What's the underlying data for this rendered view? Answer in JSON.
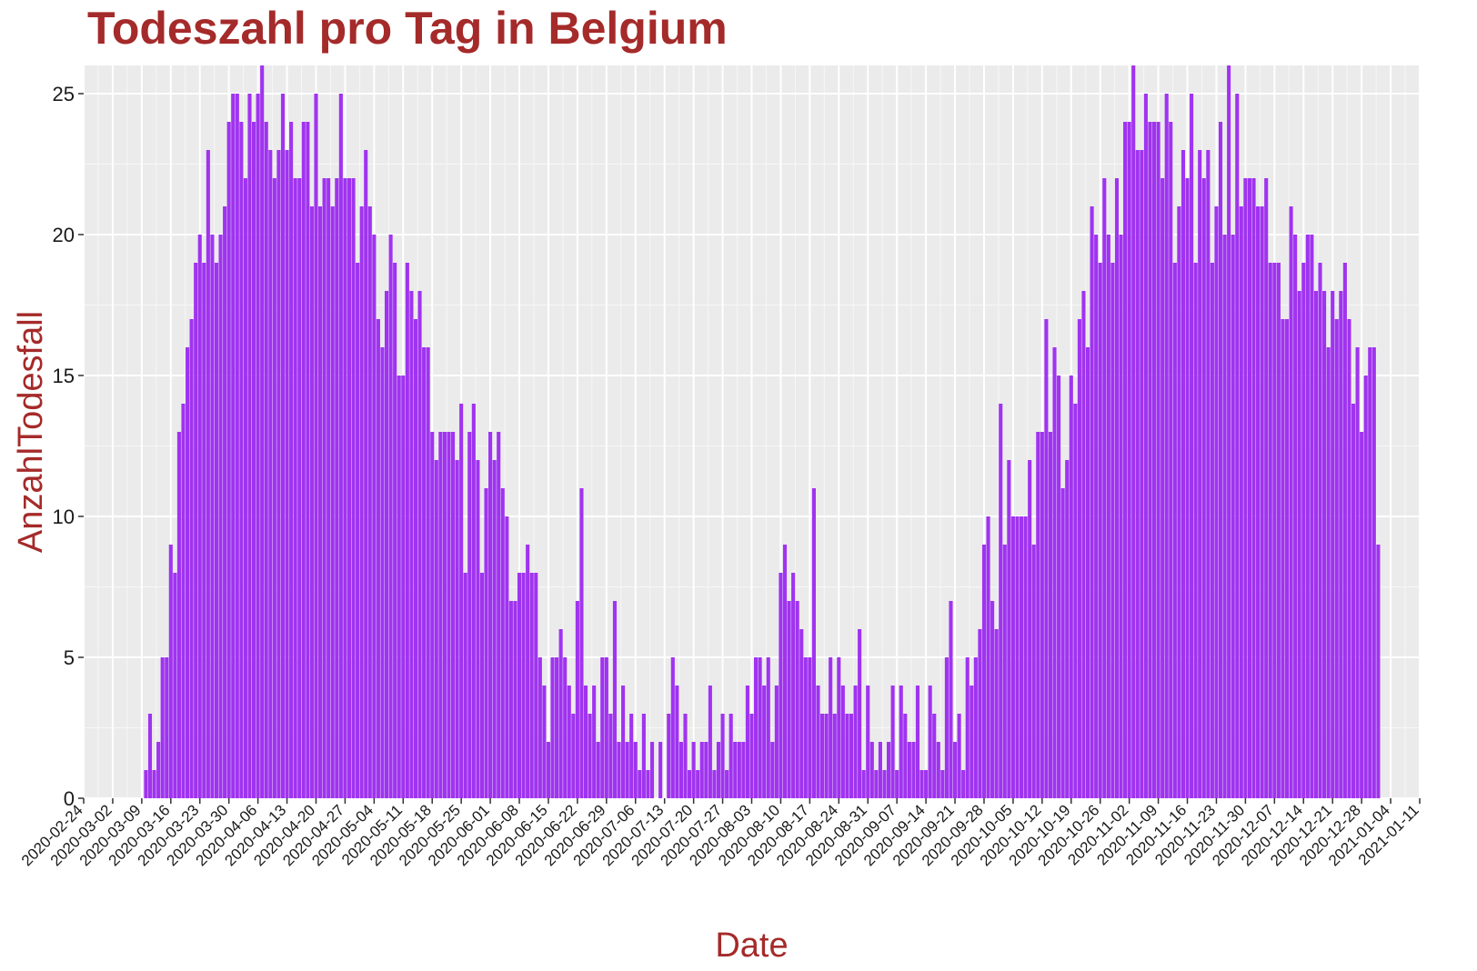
{
  "chart_data": {
    "type": "bar",
    "title": "Todeszahl pro Tag in Belgium",
    "xlabel": "Date",
    "ylabel": "AnzahlTodesfall",
    "ylim": [
      0,
      26
    ],
    "yticks": [
      0,
      5,
      10,
      15,
      20,
      25
    ],
    "xlim": [
      "2020-02-24",
      "2021-01-11"
    ],
    "xticks": [
      "2020-02-24",
      "2020-03-02",
      "2020-03-09",
      "2020-03-16",
      "2020-03-23",
      "2020-03-30",
      "2020-04-06",
      "2020-04-13",
      "2020-04-20",
      "2020-04-27",
      "2020-05-04",
      "2020-05-11",
      "2020-05-18",
      "2020-05-25",
      "2020-06-01",
      "2020-06-08",
      "2020-06-15",
      "2020-06-22",
      "2020-06-29",
      "2020-07-06",
      "2020-07-13",
      "2020-07-20",
      "2020-07-27",
      "2020-08-03",
      "2020-08-10",
      "2020-08-17",
      "2020-08-24",
      "2020-08-31",
      "2020-09-07",
      "2020-09-14",
      "2020-09-21",
      "2020-09-28",
      "2020-10-05",
      "2020-10-12",
      "2020-10-19",
      "2020-10-26",
      "2020-11-02",
      "2020-11-09",
      "2020-11-16",
      "2020-11-23",
      "2020-11-30",
      "2020-12-07",
      "2020-12-14",
      "2020-12-21",
      "2020-12-28",
      "2021-01-04",
      "2021-01-11"
    ],
    "grid": true,
    "bar_color": "#a033f0",
    "start_date": "2020-03-10",
    "values": [
      1,
      3,
      1,
      2,
      5,
      5,
      9,
      8,
      13,
      14,
      16,
      17,
      19,
      20,
      19,
      23,
      20,
      19,
      20,
      21,
      24,
      25,
      25,
      24,
      22,
      25,
      24,
      25,
      26,
      24,
      23,
      22,
      23,
      25,
      23,
      24,
      22,
      22,
      24,
      24,
      21,
      25,
      21,
      22,
      22,
      21,
      22,
      25,
      22,
      22,
      22,
      19,
      21,
      23,
      21,
      20,
      17,
      16,
      18,
      20,
      19,
      15,
      15,
      19,
      18,
      17,
      18,
      16,
      16,
      13,
      12,
      13,
      13,
      13,
      13,
      12,
      14,
      8,
      13,
      14,
      12,
      8,
      11,
      13,
      12,
      13,
      11,
      10,
      7,
      7,
      8,
      8,
      9,
      8,
      8,
      5,
      4,
      2,
      5,
      5,
      6,
      5,
      4,
      3,
      7,
      11,
      4,
      3,
      4,
      2,
      5,
      5,
      3,
      7,
      2,
      4,
      2,
      3,
      2,
      1,
      3,
      1,
      2,
      0,
      2,
      0,
      3,
      5,
      4,
      2,
      3,
      1,
      2,
      1,
      2,
      2,
      4,
      1,
      2,
      3,
      1,
      3,
      2,
      2,
      2,
      4,
      3,
      5,
      5,
      4,
      5,
      2,
      4,
      8,
      9,
      7,
      8,
      7,
      6,
      5,
      5,
      11,
      4,
      3,
      3,
      5,
      3,
      5,
      4,
      3,
      3,
      4,
      6,
      1,
      4,
      2,
      1,
      2,
      1,
      2,
      4,
      1,
      4,
      3,
      2,
      2,
      4,
      1,
      1,
      4,
      3,
      2,
      1,
      5,
      7,
      2,
      3,
      1,
      5,
      4,
      5,
      6,
      9,
      10,
      7,
      6,
      14,
      9,
      12,
      10,
      10,
      10,
      10,
      12,
      9,
      13,
      13,
      17,
      13,
      16,
      15,
      11,
      12,
      15,
      14,
      17,
      18,
      16,
      21,
      20,
      19,
      22,
      20,
      19,
      22,
      20,
      24,
      24,
      26,
      23,
      23,
      25,
      24,
      24,
      24,
      22,
      25,
      24,
      19,
      21,
      23,
      22,
      25,
      19,
      23,
      22,
      23,
      19,
      21,
      24,
      20,
      26,
      20,
      25,
      21,
      22,
      22,
      22,
      21,
      21,
      22,
      19,
      19,
      19,
      17,
      17,
      21,
      20,
      18,
      19,
      20,
      20,
      18,
      19,
      18,
      16,
      18,
      17,
      18,
      19,
      17,
      14,
      16,
      13,
      15,
      16,
      16,
      9
    ]
  }
}
